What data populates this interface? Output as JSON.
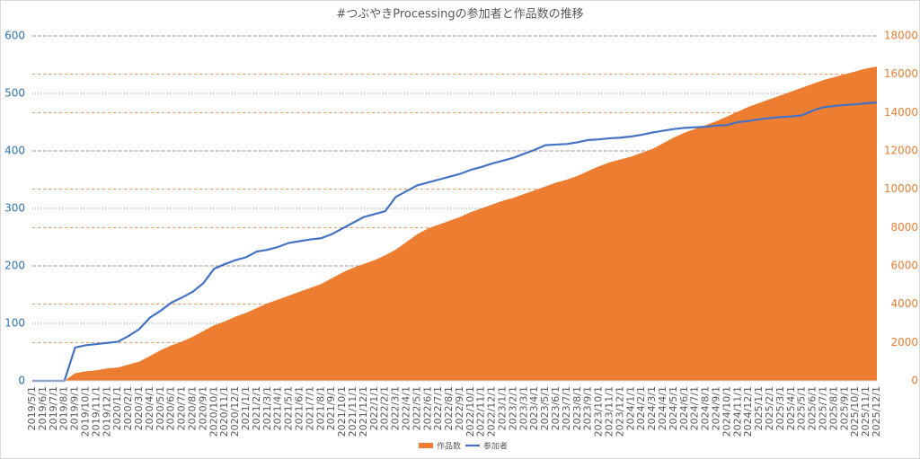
{
  "chart_data": {
    "type": "area-line",
    "title": "#つぶやきProcessingの参加者と作品数の推移",
    "categories": [
      "2019/5/1",
      "2019/6/1",
      "2019/7/1",
      "2019/8/1",
      "2019/9/1",
      "2019/10/1",
      "2019/11/1",
      "2019/12/1",
      "2020/1/1",
      "2020/2/1",
      "2020/3/1",
      "2020/4/1",
      "2020/5/1",
      "2020/6/1",
      "2020/7/1",
      "2020/8/1",
      "2020/9/1",
      "2020/10/1",
      "2020/11/1",
      "2020/12/1",
      "2021/1/1",
      "2021/2/1",
      "2021/3/1",
      "2021/4/1",
      "2021/5/1",
      "2021/6/1",
      "2021/7/1",
      "2021/8/1",
      "2021/9/1",
      "2021/10/1",
      "2021/11/1",
      "2021/12/1",
      "2022/1/1",
      "2022/2/1",
      "2022/3/1",
      "2022/4/1",
      "2022/5/1",
      "2022/6/1",
      "2022/7/1",
      "2022/8/1",
      "2022/9/1",
      "2022/10/1",
      "2022/11/1",
      "2022/12/1",
      "2023/1/1",
      "2023/2/1",
      "2023/3/1",
      "2023/4/1",
      "2023/5/1",
      "2023/6/1",
      "2023/7/1",
      "2023/8/1",
      "2023/9/1",
      "2023/10/1",
      "2023/11/1",
      "2023/12/1",
      "2024/1/1",
      "2024/2/1",
      "2024/3/1",
      "2024/4/1",
      "2024/5/1",
      "2024/6/1",
      "2024/7/1",
      "2024/8/1",
      "2024/9/1",
      "2024/10/1",
      "2024/11/1",
      "2024/12/1",
      "2025/1/1",
      "2025/2/1",
      "2025/3/1",
      "2025/4/1",
      "2025/5/1",
      "2025/6/1",
      "2025/7/1",
      "2025/8/1",
      "2025/9/1",
      "2025/10/1",
      "2025/11/1",
      "2025/12/1"
    ],
    "series": [
      {
        "name": "作品数",
        "color": "#ed7d31",
        "axis": "y2",
        "type": "area",
        "values": [
          0,
          0,
          0,
          0,
          400,
          500,
          550,
          650,
          700,
          850,
          1000,
          1300,
          1600,
          1850,
          2050,
          2300,
          2600,
          2900,
          3100,
          3350,
          3550,
          3800,
          4050,
          4250,
          4450,
          4650,
          4850,
          5050,
          5350,
          5650,
          5900,
          6100,
          6300,
          6550,
          6850,
          7250,
          7650,
          7950,
          8150,
          8350,
          8550,
          8800,
          9000,
          9200,
          9400,
          9550,
          9750,
          9950,
          10150,
          10350,
          10500,
          10700,
          10950,
          11200,
          11400,
          11550,
          11700,
          11900,
          12100,
          12400,
          12700,
          12950,
          13150,
          13350,
          13550,
          13800,
          14050,
          14300,
          14500,
          14700,
          14900,
          15100,
          15300,
          15500,
          15700,
          15850,
          16000,
          16150,
          16300,
          16400
        ]
      },
      {
        "name": "参加者",
        "color": "#4472c4",
        "type": "line",
        "values": [
          0,
          0,
          0,
          0,
          58,
          62,
          64,
          66,
          68,
          78,
          90,
          110,
          122,
          136,
          145,
          155,
          170,
          195,
          203,
          210,
          215,
          225,
          228,
          233,
          240,
          243,
          246,
          248,
          255,
          265,
          275,
          285,
          290,
          295,
          320,
          330,
          340,
          345,
          350,
          355,
          360,
          367,
          372,
          378,
          383,
          388,
          395,
          402,
          410,
          411,
          412,
          415,
          419,
          420,
          422,
          423,
          425,
          428,
          432,
          435,
          438,
          440,
          441,
          442,
          444,
          445,
          450,
          452,
          455,
          457,
          459,
          460,
          462,
          470,
          476,
          478,
          480,
          481,
          483,
          484
        ]
      }
    ],
    "ylim": [
      0,
      600
    ],
    "yticks": [
      0,
      100,
      200,
      300,
      400,
      500,
      600
    ],
    "y2lim": [
      0,
      18000
    ],
    "y2ticks": [
      0,
      2000,
      4000,
      6000,
      8000,
      10000,
      12000,
      14000,
      16000,
      18000
    ],
    "grid": true,
    "legend": "bottom"
  }
}
